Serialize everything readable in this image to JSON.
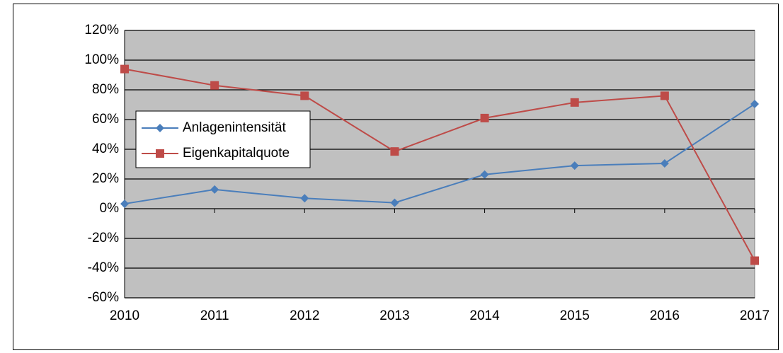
{
  "chart_data": {
    "type": "line",
    "x": [
      2010,
      2011,
      2012,
      2013,
      2014,
      2015,
      2016,
      2017
    ],
    "xlim": [
      2010,
      2017
    ],
    "xticks": [
      2010,
      2011,
      2012,
      2013,
      2014,
      2015,
      2016,
      2017
    ],
    "ylim": [
      -60,
      120
    ],
    "yticks": [
      {
        "value": -60,
        "label": "-60%"
      },
      {
        "value": -40,
        "label": "-40%"
      },
      {
        "value": -20,
        "label": "-20%"
      },
      {
        "value": 0,
        "label": "0%"
      },
      {
        "value": 20,
        "label": "20%"
      },
      {
        "value": 40,
        "label": "40%"
      },
      {
        "value": 60,
        "label": "60%"
      },
      {
        "value": 80,
        "label": "80%"
      },
      {
        "value": 100,
        "label": "100%"
      },
      {
        "value": 120,
        "label": "120%"
      }
    ],
    "grid": true,
    "legend": "left",
    "series": [
      {
        "name": "Anlagenintensität",
        "color": "#4a7ebb",
        "marker": "diamond",
        "values": [
          3.3,
          12.9,
          7,
          4,
          23,
          29,
          30.5,
          70.5
        ]
      },
      {
        "name": "Eigenkapitalquote",
        "color": "#be4b48",
        "marker": "square",
        "values": [
          94,
          83,
          76,
          38.5,
          61,
          71.5,
          76,
          -35
        ]
      }
    ]
  }
}
